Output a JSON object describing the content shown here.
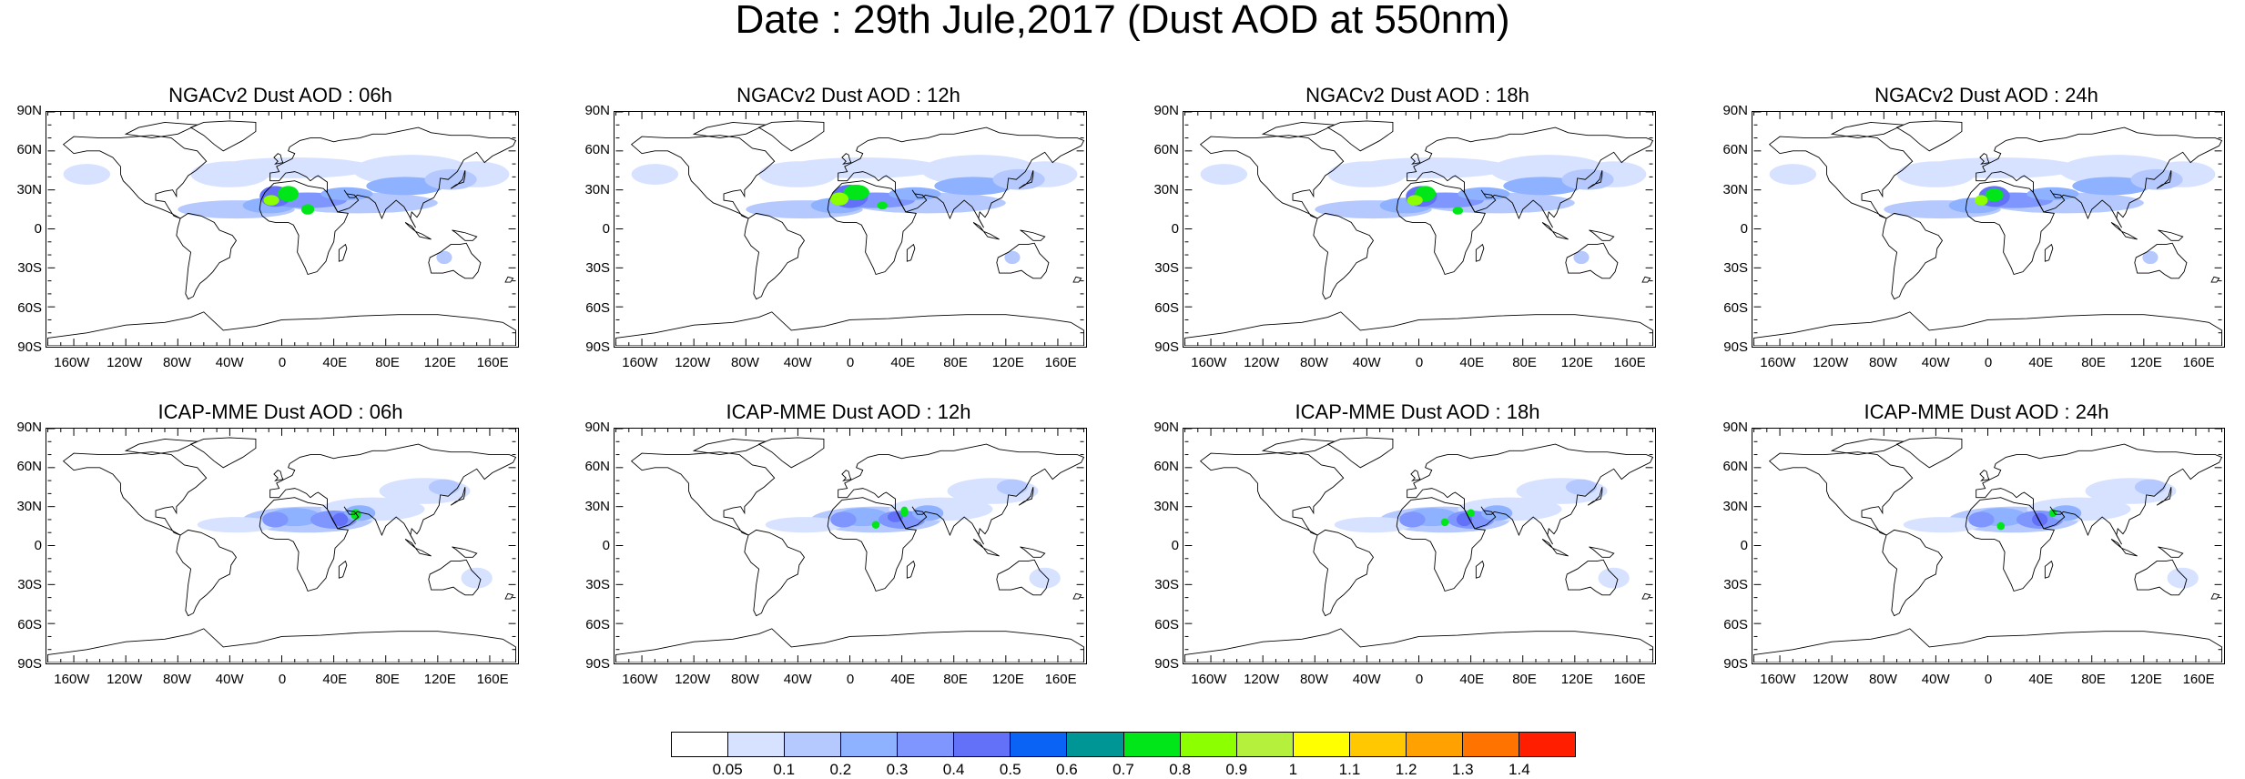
{
  "title": "Date : 29th Jule,2017 (Dust AOD at 550nm)",
  "map": {
    "projection": "equirectangular",
    "lat_labels": [
      "90N",
      "60N",
      "30N",
      "0",
      "30S",
      "60S",
      "90S"
    ],
    "lon_labels": [
      "160W",
      "120W",
      "80W",
      "40W",
      "0",
      "40E",
      "80E",
      "120E",
      "160E"
    ],
    "coastline_color": "#000000",
    "frame_color": "#000000"
  },
  "panels": [
    {
      "title": "NGACv2 Dust AOD : 06h",
      "model": "NGACv2",
      "lead": "06h"
    },
    {
      "title": "NGACv2 Dust AOD : 12h",
      "model": "NGACv2",
      "lead": "12h"
    },
    {
      "title": "NGACv2 Dust AOD : 18h",
      "model": "NGACv2",
      "lead": "18h"
    },
    {
      "title": "NGACv2 Dust AOD : 24h",
      "model": "NGACv2",
      "lead": "24h"
    },
    {
      "title": "ICAP-MME Dust AOD : 06h",
      "model": "ICAP-MME",
      "lead": "06h"
    },
    {
      "title": "ICAP-MME Dust AOD : 12h",
      "model": "ICAP-MME",
      "lead": "12h"
    },
    {
      "title": "ICAP-MME Dust AOD : 18h",
      "model": "ICAP-MME",
      "lead": "18h"
    },
    {
      "title": "ICAP-MME Dust AOD : 24h",
      "model": "ICAP-MME",
      "lead": "24h"
    }
  ],
  "colorbar": {
    "colors": [
      "#ffffff",
      "#d6e2ff",
      "#b5c9ff",
      "#8eb2ff",
      "#7f96ff",
      "#6370f8",
      "#0a63f5",
      "#009696",
      "#00e619",
      "#8cff00",
      "#b4f03c",
      "#ffff00",
      "#ffc800",
      "#ffa100",
      "#ff7300",
      "#ff1e00"
    ],
    "labels": [
      "0.05",
      "0.1",
      "0.2",
      "0.3",
      "0.4",
      "0.5",
      "0.6",
      "0.7",
      "0.8",
      "0.9",
      "1",
      "1.1",
      "1.2",
      "1.3",
      "1.4"
    ]
  }
}
